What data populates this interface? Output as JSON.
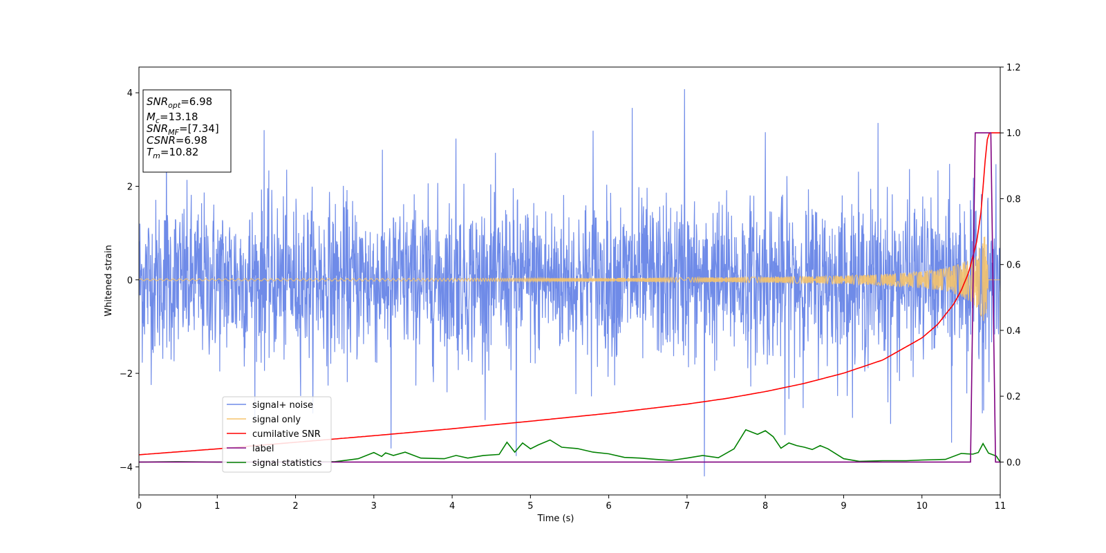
{
  "chart_data": {
    "type": "line",
    "xlabel": "Time (s)",
    "ylabel": "Whitened strain",
    "xlim": [
      0,
      11
    ],
    "ylim_left": [
      -4.6,
      4.55
    ],
    "ylim_right": [
      -0.1,
      1.2
    ],
    "x_ticks": [
      "0",
      "1",
      "2",
      "3",
      "4",
      "5",
      "6",
      "7",
      "8",
      "9",
      "10",
      "11"
    ],
    "y_ticks_left": [
      "4",
      "2",
      "0",
      "−2",
      "−4"
    ],
    "y_ticks_right": [
      "1.2",
      "1.0",
      "0.8",
      "0.6",
      "0.4",
      "0.2",
      "0.0"
    ],
    "grid": false,
    "legend_position": "lower-left",
    "series": [
      {
        "name": "signal+ noise",
        "axis": "left",
        "color": "#6f8be8",
        "kind": "noise",
        "noise_sigma": 0.85,
        "spikes": [
          [
            0.35,
            3.1
          ],
          [
            1.6,
            3.2
          ],
          [
            3.22,
            -3.6
          ],
          [
            4.05,
            3.05
          ],
          [
            4.82,
            -3.8
          ],
          [
            5.8,
            3.2
          ],
          [
            6.3,
            3.65
          ],
          [
            6.97,
            4.1
          ],
          [
            7.22,
            -4.2
          ],
          [
            8.0,
            3.2
          ],
          [
            8.25,
            -3.3
          ],
          [
            9.44,
            3.25
          ],
          [
            9.6,
            -3.2
          ],
          [
            10.38,
            -3.7
          ]
        ]
      },
      {
        "name": "signal only",
        "axis": "left",
        "color": "#f5c36b",
        "kind": "chirp",
        "x": [
          0,
          2,
          4,
          6,
          8,
          9,
          9.5,
          10,
          10.3,
          10.5,
          10.6,
          10.7,
          10.75,
          10.8,
          10.82,
          10.85
        ],
        "envelope": [
          0.02,
          0.025,
          0.03,
          0.04,
          0.06,
          0.09,
          0.12,
          0.18,
          0.25,
          0.35,
          0.45,
          0.6,
          0.75,
          0.95,
          1.0,
          0.0
        ]
      },
      {
        "name": "cumilative SNR",
        "axis": "right",
        "color": "#ff0000",
        "x": [
          0,
          1,
          2,
          3,
          4,
          5,
          6,
          7,
          7.5,
          8,
          8.5,
          9,
          9.5,
          10,
          10.2,
          10.4,
          10.5,
          10.6,
          10.7,
          10.75,
          10.8,
          10.82,
          10.85,
          11
        ],
        "values": [
          0.022,
          0.04,
          0.06,
          0.08,
          0.101,
          0.124,
          0.148,
          0.176,
          0.193,
          0.214,
          0.239,
          0.27,
          0.31,
          0.377,
          0.418,
          0.478,
          0.52,
          0.578,
          0.67,
          0.75,
          0.89,
          0.96,
          1.0,
          1.0
        ]
      },
      {
        "name": "label",
        "axis": "right",
        "color": "#800080",
        "x": [
          0,
          10.62,
          10.68,
          10.88,
          10.94,
          11
        ],
        "values": [
          0,
          0,
          1,
          1,
          0,
          0
        ]
      },
      {
        "name": "signal statistics",
        "axis": "right",
        "color": "#008000",
        "x": [
          0,
          0.5,
          1,
          1.5,
          2,
          2.5,
          2.8,
          3.0,
          3.1,
          3.15,
          3.25,
          3.4,
          3.6,
          3.9,
          4.05,
          4.2,
          4.4,
          4.6,
          4.7,
          4.8,
          4.9,
          5.0,
          5.1,
          5.25,
          5.4,
          5.6,
          5.8,
          6.0,
          6.2,
          6.4,
          6.6,
          6.8,
          7.0,
          7.2,
          7.4,
          7.6,
          7.75,
          7.9,
          8.0,
          8.1,
          8.2,
          8.3,
          8.4,
          8.5,
          8.6,
          8.7,
          8.8,
          9.0,
          9.2,
          9.5,
          9.8,
          10.0,
          10.3,
          10.5,
          10.65,
          10.72,
          10.78,
          10.85,
          10.95,
          11
        ],
        "values": [
          0.0,
          0.001,
          0.0,
          0.0,
          0.001,
          0.001,
          0.01,
          0.029,
          0.017,
          0.028,
          0.02,
          0.03,
          0.012,
          0.01,
          0.02,
          0.012,
          0.02,
          0.023,
          0.06,
          0.03,
          0.058,
          0.04,
          0.052,
          0.067,
          0.045,
          0.041,
          0.03,
          0.025,
          0.014,
          0.012,
          0.008,
          0.005,
          0.012,
          0.02,
          0.013,
          0.04,
          0.098,
          0.084,
          0.095,
          0.077,
          0.042,
          0.058,
          0.05,
          0.045,
          0.038,
          0.05,
          0.04,
          0.01,
          0.002,
          0.004,
          0.004,
          0.006,
          0.008,
          0.026,
          0.024,
          0.029,
          0.056,
          0.027,
          0.018,
          0.0
        ]
      }
    ],
    "annotation": {
      "lines": [
        {
          "base": "SNR",
          "sub": "opt",
          "value": "=6.98"
        },
        {
          "base": "M",
          "sub": "c",
          "value": "=13.18"
        },
        {
          "base": "SNR",
          "sub": "MF",
          "value": "=[7.34]"
        },
        {
          "base": "CSNR",
          "sub": "",
          "value": "=6.98"
        },
        {
          "base": "T",
          "sub": "m",
          "value": "=10.82"
        }
      ]
    }
  }
}
